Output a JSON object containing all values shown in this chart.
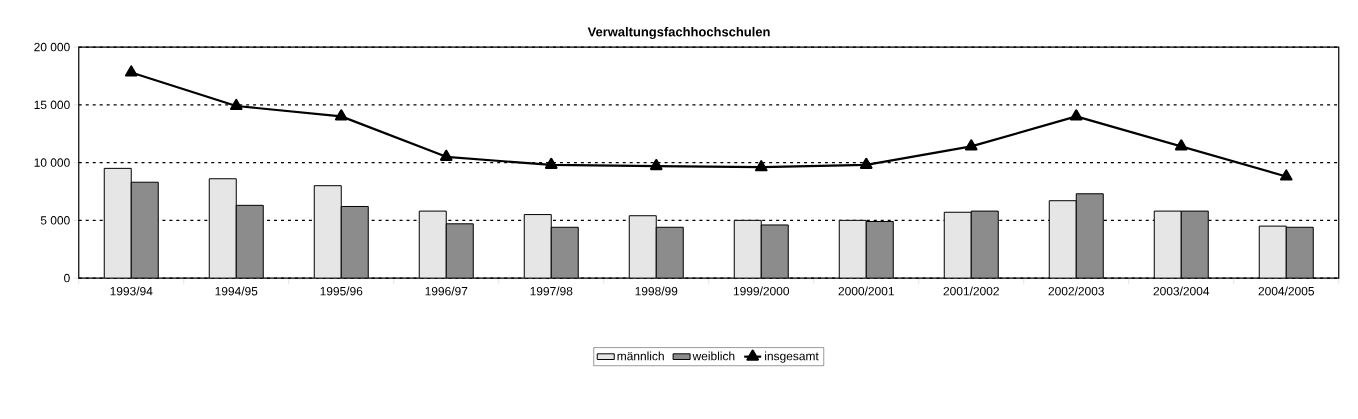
{
  "chart_data": {
    "type": "bar",
    "title": "Verwaltungsfachhochschulen",
    "categories": [
      "1993/94",
      "1994/95",
      "1995/96",
      "1996/97",
      "1997/98",
      "1998/99",
      "1999/2000",
      "2000/2001",
      "2001/2002",
      "2002/2003",
      "2003/2004",
      "2004/2005"
    ],
    "series": [
      {
        "name": "männlich",
        "color": "#e6e6e6",
        "values": [
          9500,
          8600,
          8000,
          5800,
          5500,
          5400,
          5000,
          5000,
          5700,
          6700,
          5800,
          4500
        ]
      },
      {
        "name": "weiblich",
        "color": "#8c8c8c",
        "values": [
          8300,
          6300,
          6200,
          4700,
          4400,
          4400,
          4600,
          4900,
          5800,
          7300,
          5800,
          4400
        ]
      },
      {
        "name": "insgesamt",
        "type": "line",
        "color": "#000000",
        "marker": "triangle",
        "line_style": "solid",
        "values": [
          17800,
          14900,
          14000,
          10500,
          9800,
          9700,
          9600,
          9800,
          11400,
          14000,
          11400,
          8800
        ]
      }
    ],
    "ylim": [
      0,
      20000
    ],
    "yticks": [
      {
        "value": 0,
        "label": "0"
      },
      {
        "value": 5000,
        "label": "5 000"
      },
      {
        "value": 10000,
        "label": "10 000"
      },
      {
        "value": 15000,
        "label": "15 000"
      },
      {
        "value": 20000,
        "label": "20 000"
      }
    ],
    "grid": "y",
    "legend": "bottom"
  }
}
